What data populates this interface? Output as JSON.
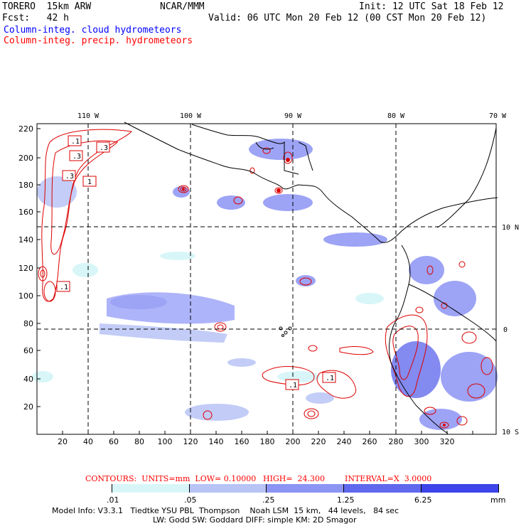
{
  "header": {
    "model": "TORERO  15km ARW",
    "org": "NCAR/MMM",
    "init": "Init: 12 UTC Sat 18 Feb 12",
    "fcst": "Fcst:   42 h",
    "valid": "Valid: 06 UTC Mon 20 Feb 12 (00 CST Mon 20 Feb 12)",
    "field_cloud": "Column-integ. cloud hydrometeors",
    "field_precip": "Column-integ. precip. hydrometeors"
  },
  "map": {
    "top_lon_labels": [
      "110 W",
      "100 W",
      "90 W",
      "80 W",
      "70 W"
    ],
    "right_lat_labels": [
      "10 N",
      "0",
      "10 S"
    ],
    "y_ticks": [
      "220",
      "200",
      "180",
      "160",
      "140",
      "120",
      "100",
      "80",
      "60",
      "40",
      "20"
    ],
    "x_ticks": [
      "20",
      "40",
      "60",
      "80",
      "100",
      "120",
      "140",
      "160",
      "180",
      "200",
      "220",
      "240",
      "260",
      "280",
      "300",
      "320"
    ],
    "contour_labels": [
      ".1",
      ".3",
      ".3",
      ".3",
      "1",
      ".1",
      ".1",
      ".1"
    ],
    "colors": {
      "cloud_light": "#d8f6f8",
      "cloud_mid": "#a0a8f8",
      "cloud_dark": "#6e76ee",
      "precip_contour": "#dd0000",
      "coast": "#000000"
    }
  },
  "contours_info": {
    "units": "CONTOURS:  UNITS=mm  LOW= 0.10000",
    "high": "HIGH=  24.300",
    "interval": "INTERVAL=X  3.0000"
  },
  "colorbar": {
    "labels": [
      ".01",
      ".05",
      ".25",
      "1.25",
      "6.25"
    ],
    "unit": "mm",
    "colors": [
      "#ffffff",
      "#d8f6f8",
      "#b8c4f6",
      "#8c94f4",
      "#6068ee",
      "#3c44ea",
      "#1a1ae6"
    ]
  },
  "footer": {
    "line1": "Model Info: V3.3.1   Tiedtke YSU PBL  Thompson    Noah LSM  15 km,   44 levels,   84 sec",
    "line2": "LW: Godd SW: Goddard DIFF: simple KM: 2D Smagor"
  }
}
